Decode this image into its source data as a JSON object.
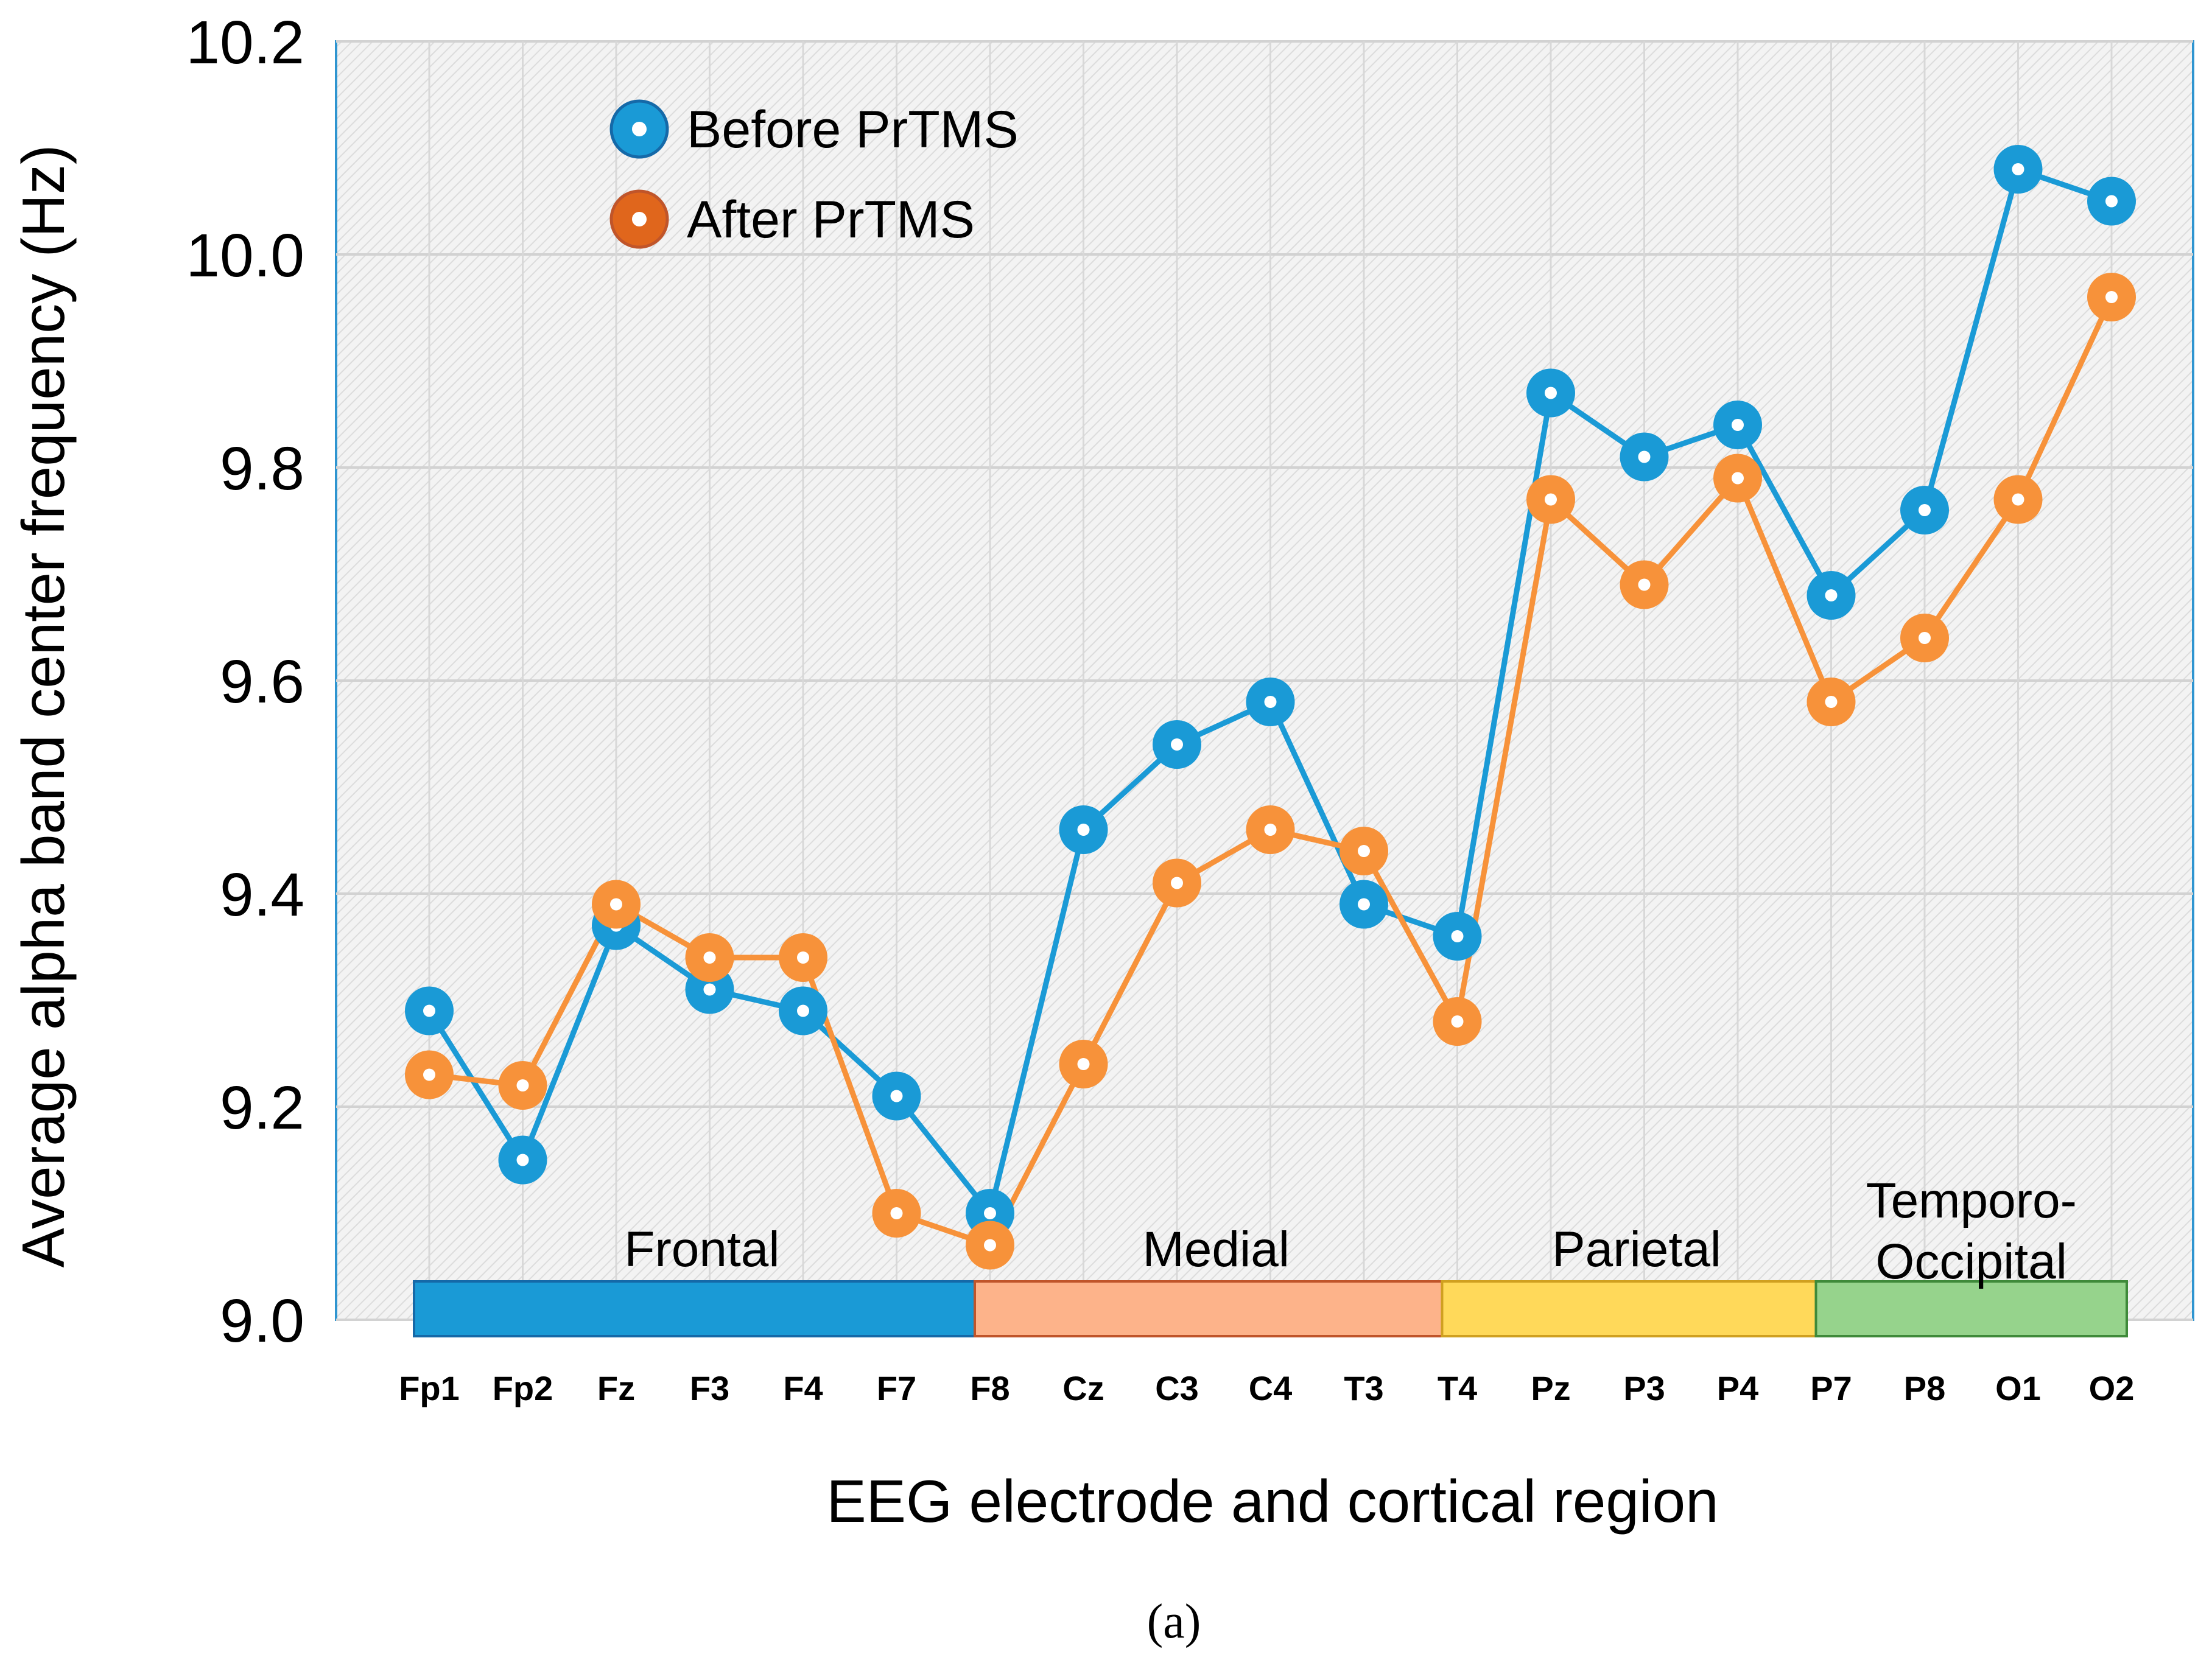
{
  "chart_data": {
    "type": "line",
    "title": "",
    "xlabel": "EEG electrode and cortical region",
    "ylabel": "Average alpha band center frequency (Hz)",
    "ylim": [
      9.0,
      10.2
    ],
    "yticks": [
      "9.0",
      "9.2",
      "9.4",
      "9.6",
      "9.8",
      "10.0",
      "10.2"
    ],
    "grid": true,
    "legend_position": "top-left",
    "categories": [
      "Fp1",
      "Fp2",
      "Fz",
      "F3",
      "F4",
      "F7",
      "F8",
      "Cz",
      "C3",
      "C4",
      "T3",
      "T4",
      "Pz",
      "P3",
      "P4",
      "P7",
      "P8",
      "O1",
      "O2"
    ],
    "series": [
      {
        "name": "Before PrTMS",
        "color": "#1a9ad6",
        "values": [
          9.29,
          9.15,
          9.37,
          9.31,
          9.29,
          9.21,
          9.1,
          9.46,
          9.54,
          9.58,
          9.39,
          9.36,
          9.87,
          9.81,
          9.84,
          9.68,
          9.76,
          10.08,
          10.05
        ]
      },
      {
        "name": "After PrTMS",
        "color": "#f7923a",
        "values": [
          9.23,
          9.22,
          9.39,
          9.34,
          9.34,
          9.1,
          9.07,
          9.24,
          9.41,
          9.46,
          9.44,
          9.28,
          9.77,
          9.69,
          9.79,
          9.58,
          9.64,
          9.77,
          9.96
        ]
      }
    ],
    "regions": [
      {
        "label": "Frontal",
        "from": 0,
        "to": 6,
        "color": "#1a9ad6",
        "border": "#1569a8"
      },
      {
        "label": "Medial",
        "from": 6,
        "to": 11,
        "color": "#fdb38a",
        "border": "#c0552a"
      },
      {
        "label": "Parietal",
        "from": 11,
        "to": 15,
        "color": "#ffd95a",
        "border": "#d0a020"
      },
      {
        "label": "Temporo-\nOccipital",
        "from": 15,
        "to": 18,
        "color": "#96d38c",
        "border": "#3f8a3a"
      }
    ]
  },
  "caption": "(a)"
}
